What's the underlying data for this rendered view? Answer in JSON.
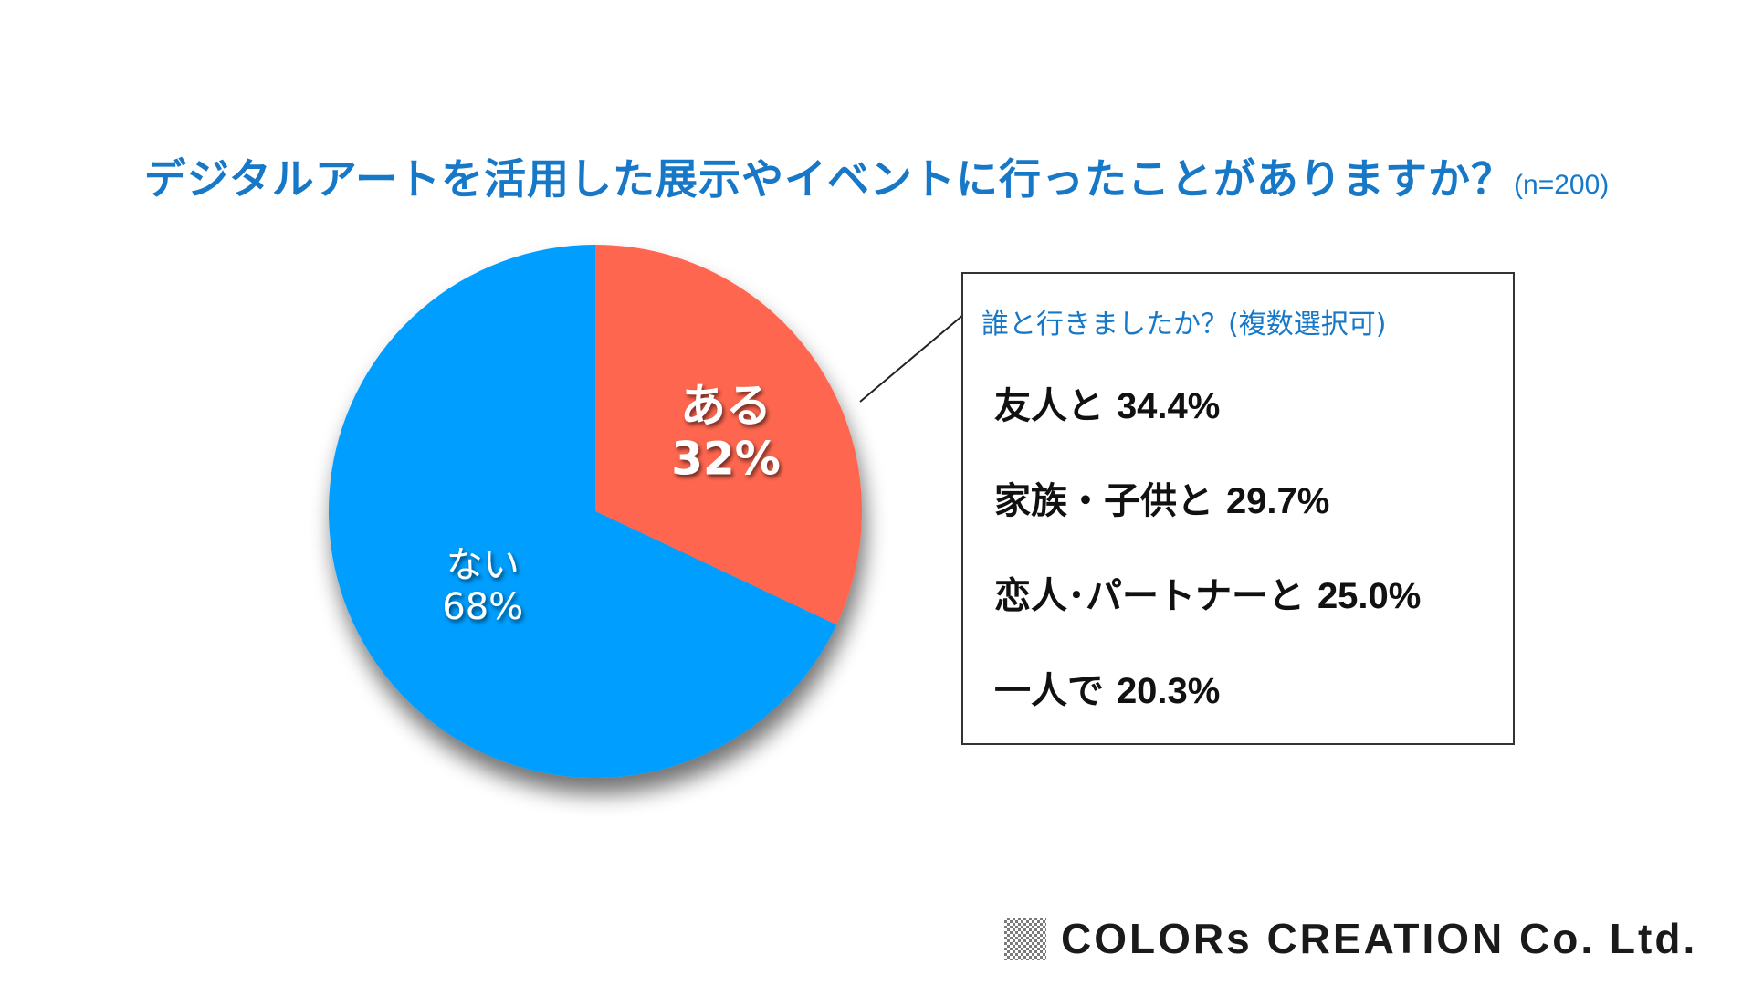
{
  "title": {
    "main": "デジタルアートを活用した展示やイベントに行ったことがありますか？",
    "sample_size": "(n=200)"
  },
  "chart_data": {
    "type": "pie",
    "title": "デジタルアートを活用した展示やイベントに行ったことがありますか？",
    "categories": [
      "ある",
      "ない"
    ],
    "values": [
      32,
      68
    ],
    "value_labels": [
      "32%",
      "68%"
    ],
    "colors": [
      "#ff6650",
      "#049efe"
    ],
    "start_angle": "12 o'clock, clockwise",
    "shadow": true
  },
  "callout": {
    "title": "誰と行きましたか？(複数選択可)",
    "items": [
      {
        "label": "友人と",
        "value": "34.4%"
      },
      {
        "label": "家族・子供と",
        "value": "29.7%"
      },
      {
        "label": "恋人･パートナーと",
        "value": "25.0%"
      },
      {
        "label": "一人で",
        "value": "20.3%"
      }
    ]
  },
  "logo": {
    "text": "COLORs CREATION Co. Ltd."
  },
  "colors": {
    "accent": "#1778c8",
    "slice_yes": "#ff6650",
    "slice_no": "#049efe",
    "border": "#333333"
  }
}
